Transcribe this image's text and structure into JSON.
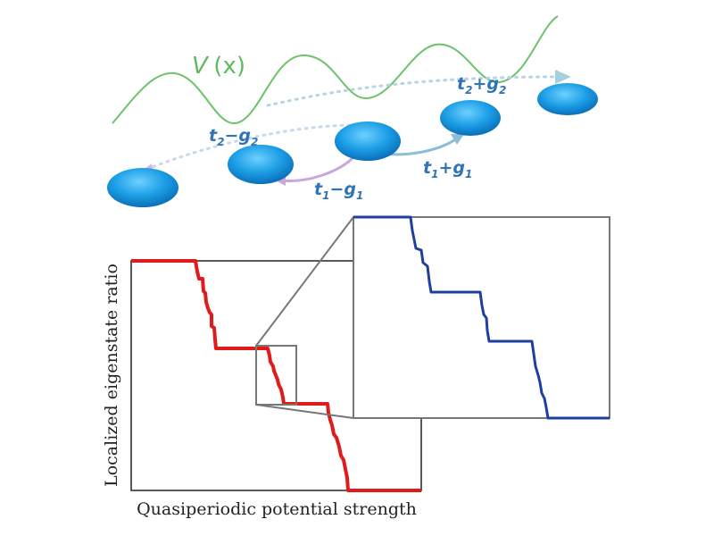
{
  "potential": {
    "name": "V",
    "arg": "(x)",
    "color": "#6cc36c"
  },
  "hoppings": {
    "t2_minus_g2": {
      "base": "t",
      "base_sub": "2",
      "op": "−",
      "g": "g",
      "g_sub": "2"
    },
    "t2_plus_g2": {
      "base": "t",
      "base_sub": "2",
      "op": "+",
      "g": "g",
      "g_sub": "2"
    },
    "t1_minus_g1": {
      "base": "t",
      "base_sub": "1",
      "op": "−",
      "g": "g",
      "g_sub": "1"
    },
    "t1_plus_g1": {
      "base": "t",
      "base_sub": "1",
      "op": "+",
      "g": "g",
      "g_sub": "1"
    }
  },
  "plot": {
    "ylabel": "Localized eigenstate ratio",
    "xlabel": "Quasiperiodic potential strength",
    "main_curve_color": "#e01b1b",
    "zoom_curve_color": "#1f3f9e"
  },
  "colors": {
    "site": "#1f9be0",
    "arrow_purple": "#c9a6dc",
    "arrow_teal": "#8cbfd6",
    "label_blue": "#2f74b5"
  }
}
